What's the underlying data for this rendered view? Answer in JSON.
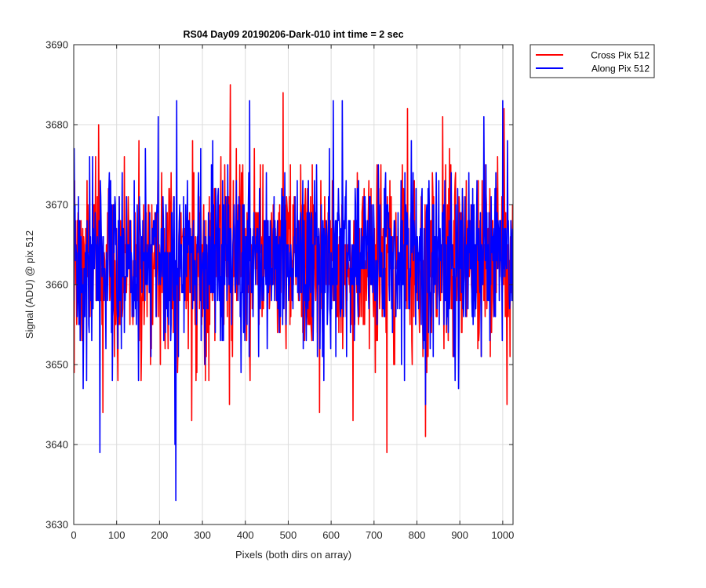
{
  "chart_data": {
    "type": "line",
    "title": "RS04 Day09 20190206-Dark-010 int time = 2 sec",
    "xlabel": "Pixels (both dirs on array)",
    "ylabel": "Signal (ADU) @ pix 512",
    "xlim": [
      0,
      1024
    ],
    "ylim": [
      3630,
      3690
    ],
    "xticks": [
      0,
      100,
      200,
      300,
      400,
      500,
      600,
      700,
      800,
      900,
      1000
    ],
    "yticks": [
      3630,
      3640,
      3650,
      3660,
      3670,
      3680,
      3690
    ],
    "grid": true,
    "legend_position": "outside-top-right",
    "points_per_series": 1024,
    "series": [
      {
        "name": "Cross Pix 512",
        "color": "#ff0000",
        "mean": 3663,
        "std": 5.5,
        "notable_points": [
          {
            "x": 1,
            "y": 3649
          },
          {
            "x": 58,
            "y": 3680
          },
          {
            "x": 68,
            "y": 3644
          },
          {
            "x": 152,
            "y": 3678
          },
          {
            "x": 275,
            "y": 3643
          },
          {
            "x": 363,
            "y": 3645
          },
          {
            "x": 365,
            "y": 3685
          },
          {
            "x": 488,
            "y": 3684
          },
          {
            "x": 573,
            "y": 3644
          },
          {
            "x": 651,
            "y": 3643
          },
          {
            "x": 730,
            "y": 3639
          },
          {
            "x": 778,
            "y": 3682
          },
          {
            "x": 820,
            "y": 3641
          },
          {
            "x": 860,
            "y": 3681
          },
          {
            "x": 1003,
            "y": 3682
          },
          {
            "x": 1010,
            "y": 3645
          }
        ]
      },
      {
        "name": "Along Pix 512",
        "color": "#0000ff",
        "mean": 3663,
        "std": 5.5,
        "notable_points": [
          {
            "x": 22,
            "y": 3647
          },
          {
            "x": 61,
            "y": 3639
          },
          {
            "x": 197,
            "y": 3681
          },
          {
            "x": 236,
            "y": 3640
          },
          {
            "x": 238,
            "y": 3633
          },
          {
            "x": 240,
            "y": 3683
          },
          {
            "x": 410,
            "y": 3683
          },
          {
            "x": 605,
            "y": 3683
          },
          {
            "x": 626,
            "y": 3683
          },
          {
            "x": 820,
            "y": 3645
          },
          {
            "x": 897,
            "y": 3647
          },
          {
            "x": 956,
            "y": 3681
          },
          {
            "x": 1000,
            "y": 3683
          }
        ]
      }
    ]
  }
}
